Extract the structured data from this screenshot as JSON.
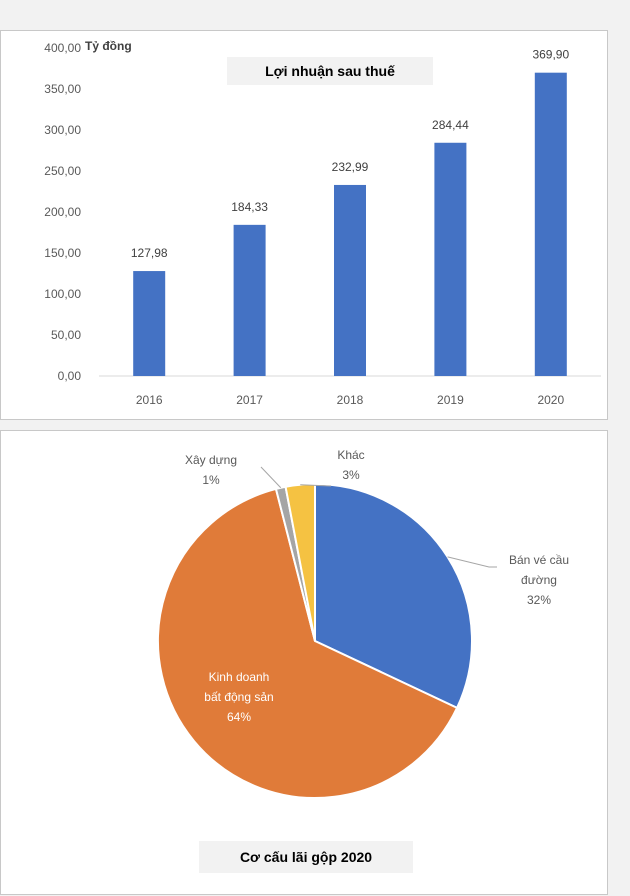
{
  "chart_data": [
    {
      "type": "bar",
      "title": "Lợi nhuận sau thuế",
      "unit_label": "Tỷ đồng",
      "categories": [
        "2016",
        "2017",
        "2018",
        "2019",
        "2020"
      ],
      "values": [
        127.98,
        184.33,
        232.99,
        284.44,
        369.9
      ],
      "value_labels": [
        "127,98",
        "184,33",
        "232,99",
        "284,44",
        "369,90"
      ],
      "ylim": [
        0,
        400
      ],
      "yticks": [
        "0,00",
        "50,00",
        "100,00",
        "150,00",
        "200,00",
        "250,00",
        "300,00",
        "350,00",
        "400,00"
      ],
      "grid": false,
      "bar_color": "#4472c4"
    },
    {
      "type": "pie",
      "title": "Cơ cấu lãi gộp 2020",
      "slices": [
        {
          "name_lines": [
            "Bán vé cầu",
            "đường"
          ],
          "pct_label": "32%",
          "value": 32,
          "color": "#4472c4"
        },
        {
          "name_lines": [
            "Kinh doanh",
            "bất động sản"
          ],
          "pct_label": "64%",
          "value": 64,
          "color": "#e07b39"
        },
        {
          "name_lines": [
            "Xây dựng"
          ],
          "pct_label": "1%",
          "value": 1,
          "color": "#a5a5a5"
        },
        {
          "name_lines": [
            "Khác"
          ],
          "pct_label": "3%",
          "value": 3,
          "color": "#f5c242"
        }
      ]
    }
  ]
}
